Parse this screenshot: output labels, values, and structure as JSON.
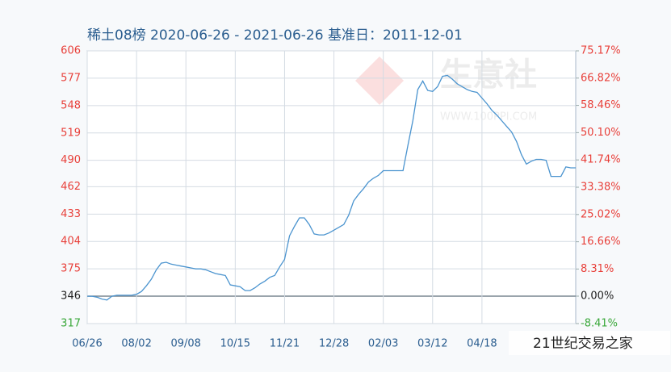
{
  "chart_data": {
    "type": "line",
    "title": "稀土08榜 2020-06-26 - 2021-06-26 基准日：2011-12-01",
    "watermark": {
      "brand": "生意社",
      "site": "WWW.100PPI.COM",
      "overlay": "21世纪交易之家"
    },
    "categories": [
      "06/26",
      null,
      null,
      null,
      null,
      null,
      null,
      null,
      null,
      null,
      "08/02",
      null,
      null,
      null,
      null,
      null,
      null,
      null,
      null,
      null,
      "09/08",
      null,
      null,
      null,
      null,
      null,
      null,
      null,
      null,
      null,
      "10/15",
      null,
      null,
      null,
      null,
      null,
      null,
      null,
      null,
      null,
      "11/21",
      null,
      null,
      null,
      null,
      null,
      null,
      null,
      null,
      null,
      "12/28",
      null,
      null,
      null,
      null,
      null,
      null,
      null,
      null,
      null,
      "02/03",
      null,
      null,
      null,
      null,
      null,
      null,
      null,
      null,
      null,
      "03/12",
      null,
      null,
      null,
      null,
      null,
      null,
      null,
      null,
      null,
      "04/18",
      null,
      null,
      null,
      null,
      null,
      null,
      null,
      null,
      null,
      null,
      null,
      null,
      null,
      null,
      null,
      null,
      null,
      null,
      null
    ],
    "series": [
      {
        "name": "稀土08榜",
        "color": "#4b94cf",
        "values": [
          346,
          346,
          345,
          343,
          342,
          346,
          347,
          347,
          347,
          347,
          348,
          351,
          357,
          364,
          374,
          381,
          382,
          380,
          379,
          378,
          377,
          376,
          375,
          375,
          374,
          372,
          370,
          369,
          368,
          358,
          357,
          356,
          352,
          352,
          355,
          359,
          362,
          366,
          368,
          377,
          385,
          410,
          420,
          429,
          429,
          422,
          412,
          411,
          411,
          413,
          416,
          419,
          422,
          432,
          447,
          454,
          460,
          467,
          471,
          474,
          479,
          479,
          479,
          479,
          479,
          506,
          532,
          565,
          574,
          564,
          563,
          568,
          579,
          580,
          576,
          571,
          568,
          565,
          563,
          562,
          556,
          550,
          543,
          538,
          532,
          526,
          520,
          510,
          496,
          486,
          489,
          491,
          491,
          490,
          473,
          473,
          473,
          483,
          482,
          482
        ]
      }
    ],
    "ylim": [
      317,
      606
    ],
    "yticks": [
      606,
      577,
      548,
      519,
      490,
      462,
      433,
      404,
      375,
      346,
      317
    ],
    "y2lim": [
      -8.41,
      75.17
    ],
    "y2ticks": [
      {
        "value": 75.17,
        "label": "75.17%"
      },
      {
        "value": 66.82,
        "label": "66.82%"
      },
      {
        "value": 58.46,
        "label": "58.46%"
      },
      {
        "value": 50.1,
        "label": "50.10%"
      },
      {
        "value": 41.74,
        "label": "41.74%"
      },
      {
        "value": 33.38,
        "label": "33.38%"
      },
      {
        "value": 25.02,
        "label": "25.02%"
      },
      {
        "value": 16.66,
        "label": "16.66%"
      },
      {
        "value": 8.31,
        "label": "8.31%"
      },
      {
        "value": 0,
        "label": "0.00%"
      },
      {
        "value": -8.41,
        "label": "-8.41%"
      }
    ],
    "tick_colors": {
      "positive": "#e8403a",
      "zero": "#222222",
      "negative": "#3aa83a"
    },
    "grid": true
  }
}
